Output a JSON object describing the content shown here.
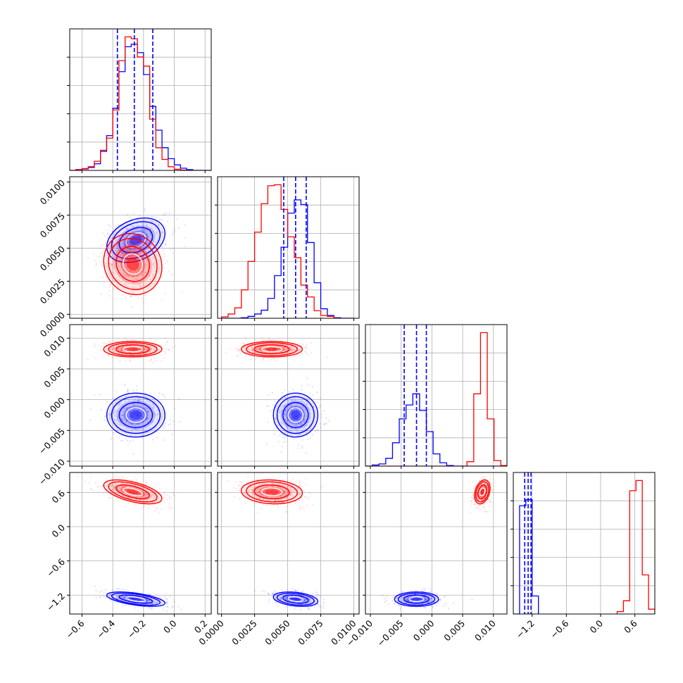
{
  "chart_data": {
    "type": "corner",
    "grid": true,
    "colors": {
      "series_a": "#0000ff",
      "series_b": "#ff0000",
      "quantile_lines": "#0000ff"
    },
    "parameters": [
      {
        "name": "",
        "range": [
          -0.68,
          0.24
        ]
      },
      {
        "name": "",
        "range": [
          -0.0003,
          0.0104
        ]
      },
      {
        "name": "",
        "range": [
          -0.0108,
          0.0122
        ]
      },
      {
        "name": "",
        "range": [
          -1.53,
          0.95
        ]
      }
    ],
    "x_tick_labels": [
      [
        "−0.6",
        "−0.4",
        "−0.2",
        "0.0",
        "0.2"
      ],
      [
        "0.0000",
        "0.0025",
        "0.0050",
        "0.0075",
        "0.0100"
      ],
      [
        "−0.010",
        "−0.005",
        "0.000",
        "0.005",
        "0.010"
      ],
      [
        "−1.2",
        "−0.6",
        "0.0",
        "0.6"
      ]
    ],
    "y_tick_labels": {
      "row2": [
        "0.0000",
        "0.0025",
        "0.0050",
        "0.0075",
        "0.0100"
      ],
      "row3": [
        "−0.010",
        "−0.005",
        "0.000",
        "0.005",
        "0.010"
      ],
      "row4": [
        "−1.2",
        "−0.6",
        "0.0",
        "0.6"
      ]
    },
    "quantiles_series_a": [
      [
        -0.37,
        -0.26,
        -0.14
      ],
      [
        0.0047,
        0.0056,
        0.0064
      ],
      [
        -0.0045,
        -0.0025,
        -0.0009
      ],
      [
        -1.33,
        -1.27,
        -1.22
      ]
    ],
    "series": [
      {
        "color": "#0000ff",
        "means": [
          -0.25,
          0.0056,
          -0.0025,
          -1.27
        ],
        "stds": [
          0.09,
          0.0008,
          0.0017,
          0.06
        ],
        "correlations": [
          [
            0,
            1,
            0.3
          ],
          [
            0,
            3,
            -0.55
          ],
          [
            1,
            3,
            -0.3
          ]
        ],
        "histograms": [
          {
            "edges": [
              -0.68,
              -0.64,
              -0.6,
              -0.56,
              -0.52,
              -0.48,
              -0.44,
              -0.4,
              -0.36,
              -0.32,
              -0.28,
              -0.24,
              -0.2,
              -0.16,
              -0.12,
              -0.08,
              -0.04,
              0.0,
              0.04,
              0.08,
              0.12,
              0.16,
              0.2,
              0.24
            ],
            "counts": [
              0,
              2,
              4,
              8,
              18,
              52,
              95,
              170,
              270,
              338,
              345,
              322,
              262,
              175,
              110,
              62,
              32,
              15,
              6,
              2,
              0,
              0,
              0
            ]
          },
          {
            "edges": [
              0.0,
              0.0005,
              0.001,
              0.0015,
              0.002,
              0.0025,
              0.003,
              0.0035,
              0.004,
              0.0045,
              0.005,
              0.0055,
              0.006,
              0.0065,
              0.007,
              0.0075,
              0.008,
              0.0085,
              0.009,
              0.0095,
              0.01
            ],
            "counts": [
              0,
              0,
              0,
              1,
              4,
              9,
              17,
              42,
              90,
              150,
              222,
              250,
              240,
              160,
              75,
              20,
              6,
              1,
              0,
              0
            ]
          },
          {
            "edges": [
              -0.0108,
              -0.0097,
              -0.0086,
              -0.0075,
              -0.0064,
              -0.0053,
              -0.0042,
              -0.0031,
              -0.002,
              -0.0009,
              0.0002,
              0.0013,
              0.0024,
              0.0035,
              0.0046,
              0.0057,
              0.0068,
              0.0079,
              0.009,
              0.0101,
              0.0112,
              0.0122
            ],
            "counts": [
              0,
              2,
              4,
              14,
              42,
              85,
              110,
              130,
              100,
              62,
              22,
              6,
              1,
              0,
              0,
              0,
              0,
              0,
              0,
              0,
              0
            ]
          },
          {
            "edges": [
              -1.53,
              -1.42,
              -1.31,
              -1.2,
              -1.09
            ],
            "counts": [
              0,
              180,
              190,
              30
            ]
          }
        ]
      },
      {
        "color": "#ff0000",
        "means": [
          -0.27,
          0.0038,
          0.0082,
          0.61
        ],
        "stds": [
          0.09,
          0.0011,
          0.0006,
          0.1
        ],
        "correlations": [
          [
            0,
            1,
            -0.1
          ],
          [
            0,
            3,
            -0.55
          ],
          [
            1,
            3,
            -0.1
          ],
          [
            2,
            3,
            0.3
          ]
        ],
        "histograms": [
          {
            "edges": [
              -0.68,
              -0.64,
              -0.6,
              -0.56,
              -0.52,
              -0.48,
              -0.44,
              -0.4,
              -0.36,
              -0.32,
              -0.28,
              -0.24,
              -0.2,
              -0.16,
              -0.12,
              -0.08,
              -0.04,
              0.0,
              0.04,
              0.08,
              0.12,
              0.16,
              0.2,
              0.24
            ],
            "counts": [
              0,
              2,
              5,
              10,
              25,
              55,
              88,
              165,
              300,
              365,
              360,
              310,
              285,
              140,
              62,
              30,
              10,
              3,
              1,
              0,
              0,
              0,
              0
            ]
          },
          {
            "edges": [
              0.0,
              0.0005,
              0.001,
              0.0015,
              0.002,
              0.0025,
              0.003,
              0.0035,
              0.004,
              0.0045,
              0.005,
              0.0055,
              0.006,
              0.0065,
              0.007,
              0.0075,
              0.008,
              0.0085,
              0.009,
              0.0095,
              0.01
            ],
            "counts": [
              3,
              9,
              22,
              60,
              120,
              182,
              242,
              280,
              282,
              230,
              172,
              128,
              70,
              45,
              16,
              6,
              4,
              0,
              0,
              0
            ]
          },
          {
            "edges": [
              -0.0108,
              -0.0097,
              -0.0086,
              -0.0075,
              -0.0064,
              -0.0053,
              -0.0042,
              -0.0031,
              -0.002,
              -0.0009,
              0.0002,
              0.0013,
              0.0024,
              0.0035,
              0.0046,
              0.0057,
              0.0068,
              0.0079,
              0.009,
              0.0101,
              0.0112,
              0.0122
            ],
            "counts": [
              0,
              0,
              0,
              0,
              0,
              0,
              0,
              0,
              0,
              0,
              0,
              0,
              0,
              0,
              0,
              8,
              130,
              240,
              85,
              10,
              1
            ]
          },
          {
            "edges": [
              0.29,
              0.4,
              0.51,
              0.62,
              0.73,
              0.84,
              0.95
            ],
            "counts": [
              4,
              22,
              205,
              222,
              65,
              8
            ]
          }
        ]
      }
    ]
  }
}
